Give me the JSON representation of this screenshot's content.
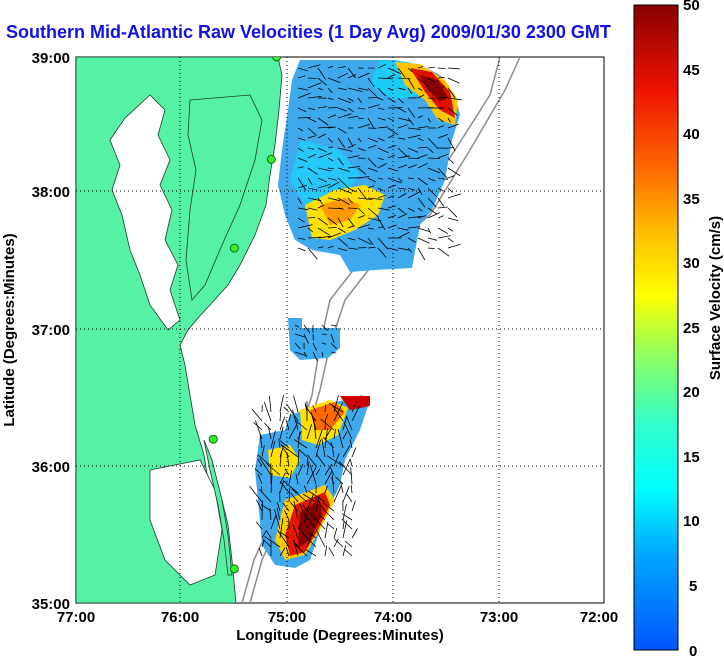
{
  "title": "Southern Mid-Atlantic Raw Velocities (1 Day Avg) 2009/01/30 2300 GMT",
  "map": {
    "xlabel": "Longitude (Degrees:Minutes)",
    "ylabel": "Latitude (Degrees:Minutes)",
    "x_ticks": [
      "77:00",
      "76:00",
      "75:00",
      "74:00",
      "73:00",
      "72:00"
    ],
    "y_ticks": [
      "39:00",
      "38:00",
      "37:00",
      "36:00",
      "35:00"
    ],
    "land_color": "#55f2a6",
    "grid": "dotted"
  },
  "colorbar": {
    "label": "Surface Velocity (cm/s)",
    "ticks": [
      "50",
      "45",
      "40",
      "35",
      "30",
      "25",
      "20",
      "15",
      "10",
      "5",
      "0"
    ],
    "min": 0,
    "max": 50
  },
  "stations": [
    {
      "lon": -75.1,
      "lat": 39.0
    },
    {
      "lon": -75.15,
      "lat": 38.25
    },
    {
      "lon": -75.5,
      "lat": 37.6
    },
    {
      "lon": -75.7,
      "lat": 36.2
    },
    {
      "lon": -75.5,
      "lat": 35.25
    }
  ]
}
